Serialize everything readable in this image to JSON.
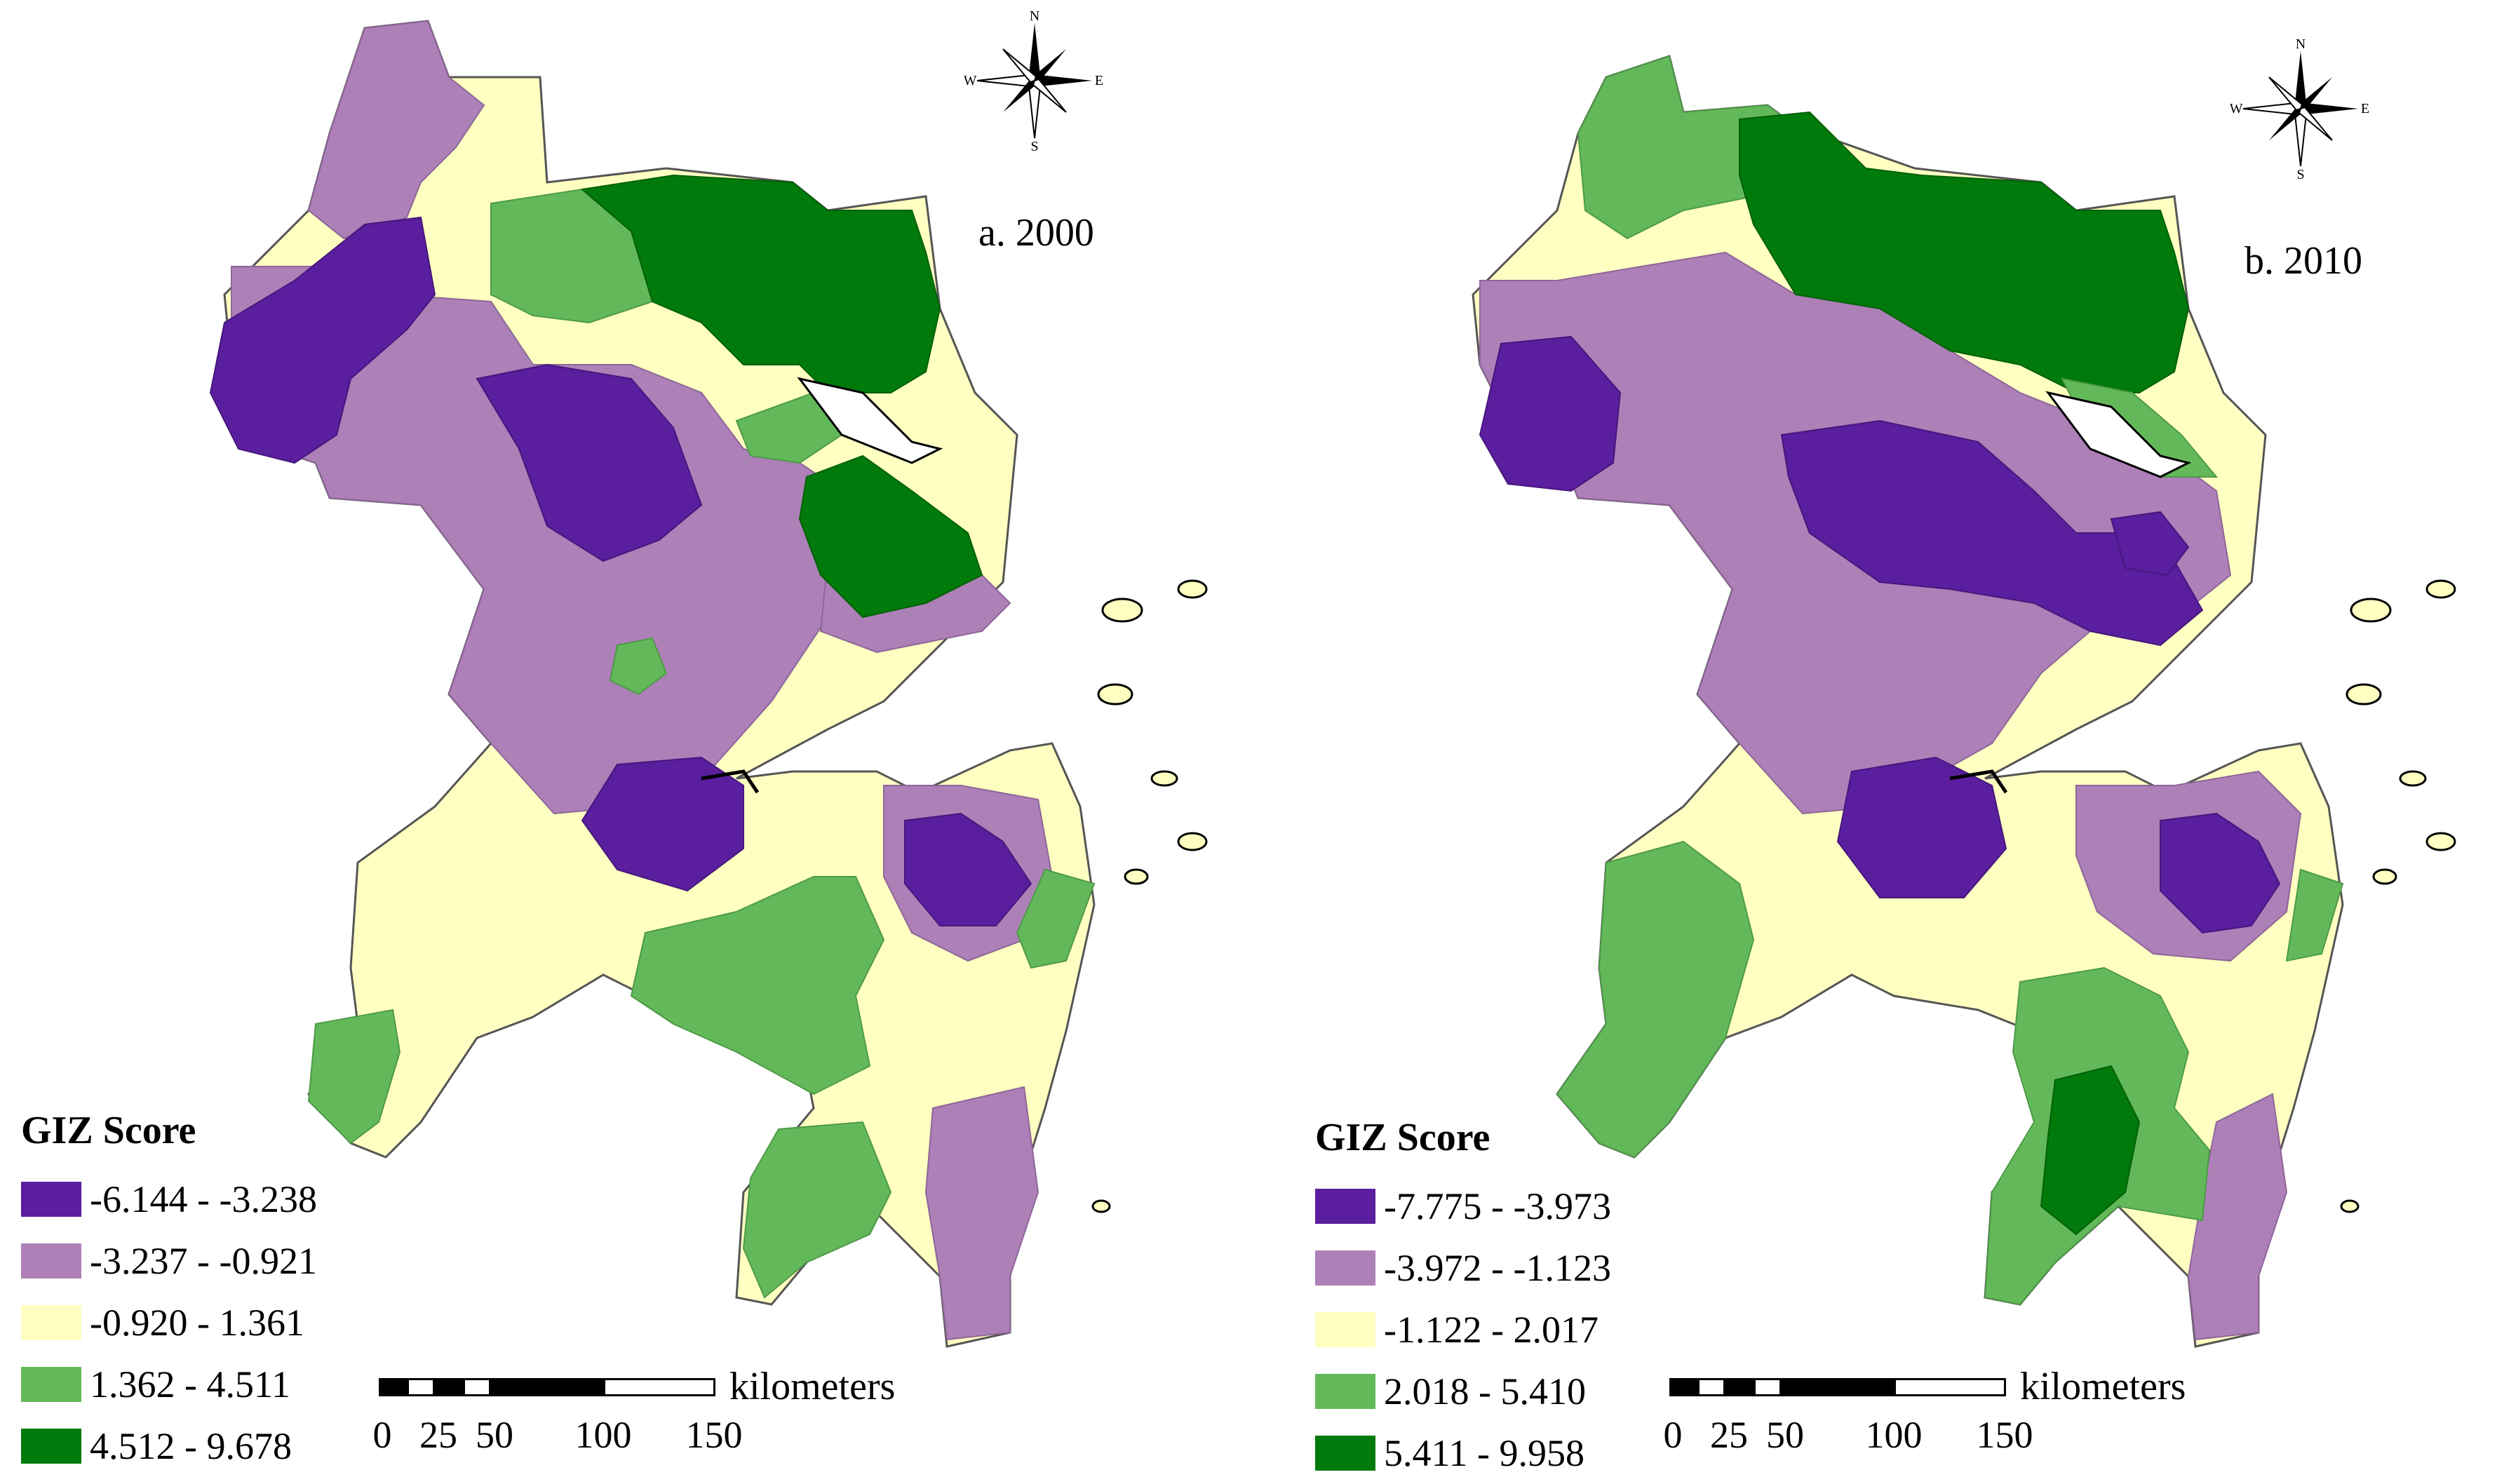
{
  "colors": {
    "class1": "#5a1e9e",
    "class2": "#ad80b8",
    "class3": "#ffffc2",
    "class4": "#63b95a",
    "class5": "#007a0a",
    "outline": "#7a7a7a"
  },
  "panels": [
    {
      "label": "a. 2000",
      "compass": {
        "n": "N",
        "s": "S",
        "e": "E",
        "w": "W"
      },
      "legend": {
        "title": "GIZ Score",
        "items": [
          {
            "label": "-6.144 - -3.238",
            "color": "#5a1e9e"
          },
          {
            "label": "-3.237 - -0.921",
            "color": "#ad80b8"
          },
          {
            "label": "-0.920 - 1.361",
            "color": "#ffffc2"
          },
          {
            "label": "1.362 - 4.511",
            "color": "#63b95a"
          },
          {
            "label": "4.512 - 9.678",
            "color": "#007a0a"
          }
        ]
      },
      "scale": {
        "unit": "kilometers",
        "ticks": [
          "0",
          "25",
          "50",
          "100",
          "150"
        ]
      }
    },
    {
      "label": "b. 2010",
      "compass": {
        "n": "N",
        "s": "S",
        "e": "E",
        "w": "W"
      },
      "legend": {
        "title": "GIZ Score",
        "items": [
          {
            "label": "-7.775 - -3.973",
            "color": "#5a1e9e"
          },
          {
            "label": "-3.972 - -1.123",
            "color": "#ad80b8"
          },
          {
            "label": "-1.122 - 2.017",
            "color": "#ffffc2"
          },
          {
            "label": "2.018 - 5.410",
            "color": "#63b95a"
          },
          {
            "label": "5.411 - 9.958",
            "color": "#007a0a"
          }
        ]
      },
      "scale": {
        "unit": "kilometers",
        "ticks": [
          "0",
          "25",
          "50",
          "100",
          "150"
        ]
      }
    }
  ]
}
